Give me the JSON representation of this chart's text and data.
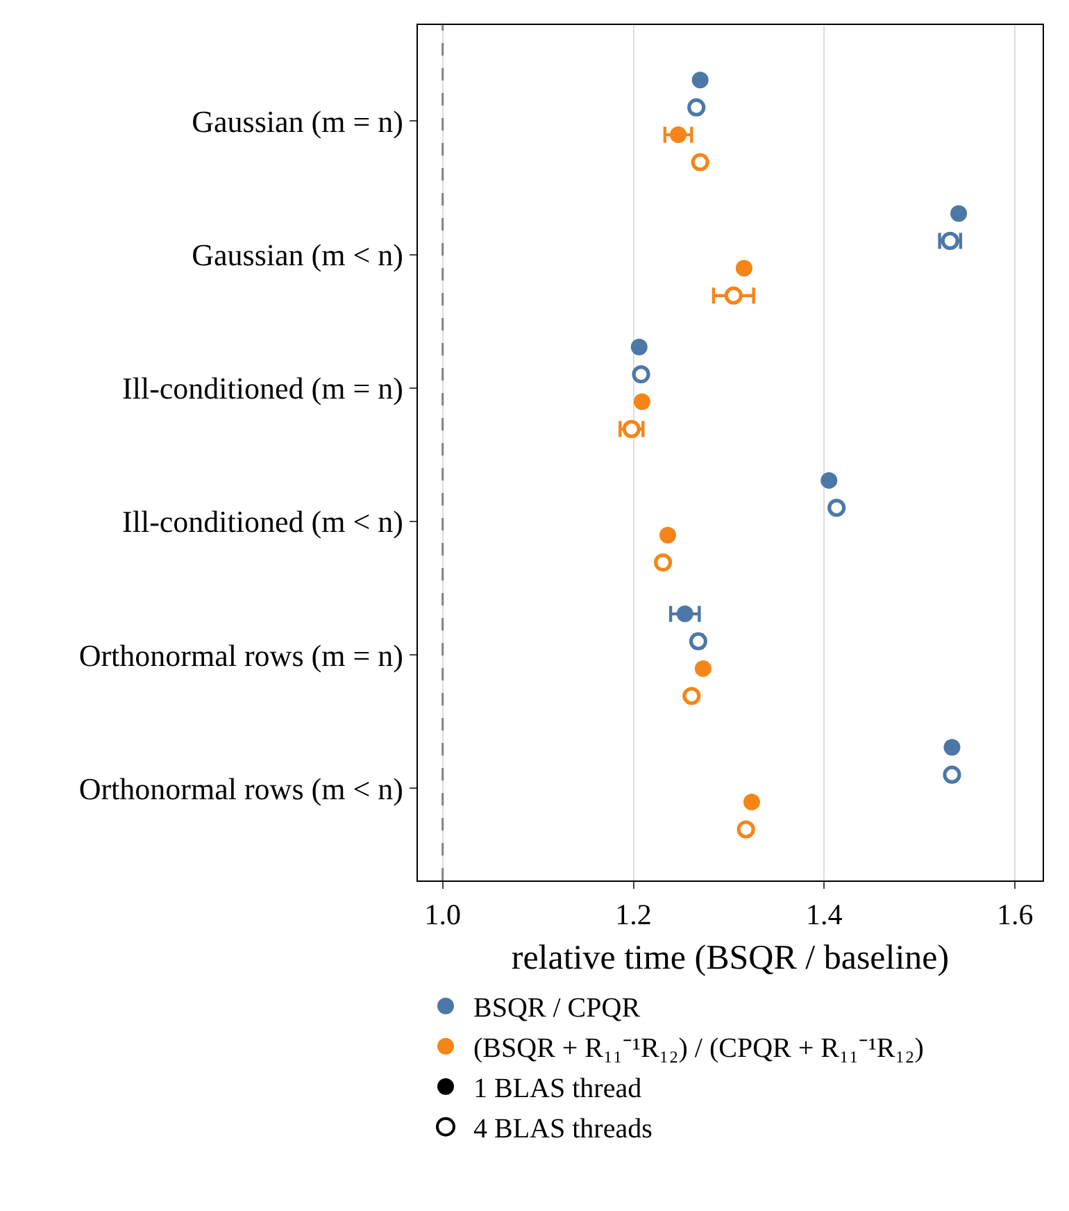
{
  "chart_data": {
    "type": "scatter",
    "orientation": "horizontal",
    "xlabel": "relative time (BSQR / baseline)",
    "categories": [
      "Gaussian (m = n)",
      "Gaussian (m < n)",
      "Ill-conditioned (m = n)",
      "Ill-conditioned (m < n)",
      "Orthonormal rows (m = n)",
      "Orthonormal rows (m < n)"
    ],
    "series": [
      {
        "color": "#4c78a8",
        "marker": "circle",
        "values": [
          1.27,
          1.541,
          1.206,
          1.405,
          1.254,
          1.534
        ],
        "errors": [
          null,
          null,
          null,
          null,
          0.015,
          null
        ]
      },
      {
        "color": "#4c78a8",
        "marker": "circle-open",
        "values": [
          1.266,
          1.532,
          1.208,
          1.413,
          1.268,
          1.534
        ],
        "errors": [
          null,
          0.011,
          null,
          null,
          0.004,
          null
        ]
      },
      {
        "color": "#f58518",
        "marker": "circle",
        "values": [
          1.247,
          1.316,
          1.209,
          1.236,
          1.273,
          1.324
        ],
        "errors": [
          0.014,
          null,
          null,
          null,
          null,
          null
        ]
      },
      {
        "color": "#f58518",
        "marker": "circle-open",
        "values": [
          1.27,
          1.305,
          1.198,
          1.231,
          1.261,
          1.318
        ],
        "errors": [
          null,
          0.021,
          0.012,
          null,
          null,
          null
        ]
      },
      {
        "name": "BSQR / CPQR",
        "color": "#4c78a8",
        "marker": "circle",
        "values": [
          null,
          null,
          null,
          null,
          null,
          null
        ]
      },
      {
        "name": "(BSQR + R₁₁⁻¹R₁₂) / (CPQR + R₁₁⁻¹R₁₂)",
        "color": "#f58518",
        "marker": "circle",
        "values": [
          null,
          null,
          null,
          null,
          null,
          null
        ]
      },
      {
        "name": "1 BLAS thread",
        "color": "#000000",
        "marker": "circle",
        "values": [
          null,
          null,
          null,
          null,
          null,
          null
        ]
      },
      {
        "name": "4 BLAS threads",
        "color": "#000000",
        "marker": "circle-open",
        "values": [
          null,
          null,
          null,
          null,
          null,
          null
        ]
      }
    ],
    "xlim": [
      0.974,
      1.629
    ],
    "xticks": [
      {
        "value": 1.0,
        "label": "1.0"
      },
      {
        "value": 1.2,
        "label": "1.2"
      },
      {
        "value": 1.4,
        "label": "1.4"
      },
      {
        "value": 1.6,
        "label": "1.6"
      }
    ],
    "ref_lines": [
      {
        "axis": "x",
        "value": 1.0,
        "color": "#808080",
        "line_style": "dashed"
      }
    ],
    "grid": "x",
    "legend": "bottom"
  }
}
